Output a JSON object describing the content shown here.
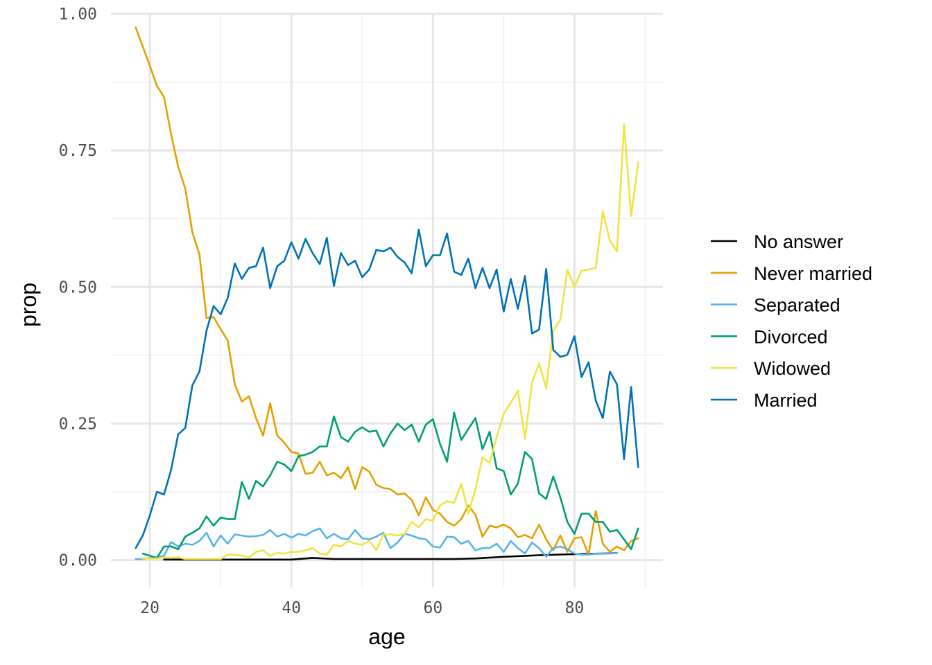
{
  "chart_data": {
    "type": "line",
    "title": "",
    "xlabel": "age",
    "ylabel": "prop",
    "xlim": [
      14.5,
      92.5
    ],
    "ylim": [
      -0.05,
      1.0
    ],
    "x_ticks": [
      20,
      40,
      60,
      80
    ],
    "x_tick_labels": [
      "20",
      "40",
      "60",
      "80"
    ],
    "y_ticks": [
      0,
      0.25,
      0.5,
      0.75,
      1.0
    ],
    "y_tick_labels": [
      "0.00",
      "0.25",
      "0.50",
      "0.75",
      "1.00"
    ],
    "grid": true,
    "legend_position": "right",
    "series": [
      {
        "name": "No answer",
        "color": "#000000",
        "x": [
          22,
          30,
          35,
          40,
          43,
          46,
          50,
          55,
          60,
          63,
          66,
          70,
          75,
          80,
          84,
          86
        ],
        "values": [
          0.001,
          0.001,
          0.001,
          0.001,
          0.004,
          0.002,
          0.002,
          0.002,
          0.002,
          0.002,
          0.003,
          0.006,
          0.009,
          0.011,
          0.012,
          0.013
        ]
      },
      {
        "name": "Never married",
        "color": "#E69F00",
        "x": [
          18,
          19,
          20,
          21,
          22,
          23,
          24,
          25,
          26,
          27,
          28,
          29,
          30,
          31,
          32,
          33,
          34,
          35,
          36,
          37,
          38,
          39,
          40,
          41,
          42,
          43,
          44,
          45,
          46,
          47,
          48,
          49,
          50,
          51,
          52,
          53,
          54,
          55,
          56,
          57,
          58,
          59,
          60,
          61,
          62,
          63,
          64,
          65,
          66,
          67,
          68,
          69,
          70,
          71,
          72,
          73,
          74,
          75,
          76,
          77,
          78,
          79,
          80,
          81,
          82,
          83,
          84,
          85,
          86,
          87,
          88,
          89
        ],
        "values": [
          0.975,
          0.94,
          0.905,
          0.868,
          0.848,
          0.78,
          0.72,
          0.68,
          0.6,
          0.56,
          0.443,
          0.445,
          0.423,
          0.402,
          0.322,
          0.29,
          0.3,
          0.26,
          0.228,
          0.287,
          0.228,
          0.215,
          0.198,
          0.195,
          0.158,
          0.16,
          0.18,
          0.155,
          0.16,
          0.15,
          0.17,
          0.13,
          0.17,
          0.162,
          0.138,
          0.132,
          0.13,
          0.12,
          0.122,
          0.11,
          0.082,
          0.115,
          0.092,
          0.085,
          0.07,
          0.063,
          0.075,
          0.1,
          0.083,
          0.043,
          0.063,
          0.06,
          0.065,
          0.058,
          0.042,
          0.046,
          0.04,
          0.065,
          0.038,
          0.018,
          0.045,
          0.015,
          0.04,
          0.042,
          0.01,
          0.09,
          0.03,
          0.015,
          0.025,
          0.018,
          0.035,
          0.04
        ]
      },
      {
        "name": "Separated",
        "color": "#56B4E9",
        "x": [
          18,
          19,
          20,
          21,
          22,
          23,
          24,
          25,
          26,
          27,
          28,
          29,
          30,
          31,
          32,
          33,
          34,
          35,
          36,
          37,
          38,
          39,
          40,
          41,
          42,
          43,
          44,
          45,
          46,
          47,
          48,
          49,
          50,
          51,
          52,
          53,
          54,
          55,
          56,
          57,
          58,
          59,
          60,
          61,
          62,
          63,
          64,
          65,
          66,
          67,
          68,
          69,
          70,
          71,
          72,
          73,
          74,
          75,
          76,
          77,
          78,
          79,
          80,
          81,
          82,
          83,
          84,
          85,
          86
        ],
        "values": [
          0.002,
          0.002,
          0.004,
          0.005,
          0.008,
          0.033,
          0.025,
          0.03,
          0.028,
          0.035,
          0.05,
          0.025,
          0.045,
          0.03,
          0.047,
          0.045,
          0.043,
          0.044,
          0.046,
          0.055,
          0.043,
          0.048,
          0.041,
          0.048,
          0.045,
          0.053,
          0.058,
          0.04,
          0.048,
          0.04,
          0.038,
          0.055,
          0.04,
          0.038,
          0.043,
          0.05,
          0.022,
          0.032,
          0.048,
          0.045,
          0.04,
          0.038,
          0.025,
          0.023,
          0.043,
          0.042,
          0.03,
          0.035,
          0.018,
          0.022,
          0.022,
          0.03,
          0.015,
          0.035,
          0.022,
          0.012,
          0.032,
          0.022,
          0.006,
          0.022,
          0.025,
          0.02,
          0.012,
          0.01,
          0.01,
          0.012,
          0.012,
          0.012,
          0.013
        ]
      },
      {
        "name": "Divorced",
        "color": "#009E73",
        "x": [
          19,
          20,
          21,
          22,
          23,
          24,
          25,
          26,
          27,
          28,
          29,
          30,
          31,
          32,
          33,
          34,
          35,
          36,
          37,
          38,
          39,
          40,
          41,
          42,
          43,
          44,
          45,
          46,
          47,
          48,
          49,
          50,
          51,
          52,
          53,
          54,
          55,
          56,
          57,
          58,
          59,
          60,
          61,
          62,
          63,
          64,
          65,
          66,
          67,
          68,
          69,
          70,
          71,
          72,
          73,
          74,
          75,
          76,
          77,
          78,
          79,
          80,
          81,
          82,
          83,
          84,
          85,
          86,
          87,
          88,
          89
        ],
        "values": [
          0.012,
          0.008,
          0.004,
          0.025,
          0.025,
          0.02,
          0.043,
          0.05,
          0.058,
          0.08,
          0.063,
          0.078,
          0.075,
          0.075,
          0.143,
          0.112,
          0.145,
          0.135,
          0.155,
          0.18,
          0.175,
          0.163,
          0.19,
          0.193,
          0.198,
          0.208,
          0.208,
          0.263,
          0.225,
          0.217,
          0.235,
          0.243,
          0.235,
          0.237,
          0.208,
          0.232,
          0.25,
          0.238,
          0.248,
          0.217,
          0.248,
          0.258,
          0.213,
          0.18,
          0.27,
          0.22,
          0.24,
          0.26,
          0.203,
          0.235,
          0.168,
          0.163,
          0.12,
          0.14,
          0.198,
          0.185,
          0.122,
          0.112,
          0.153,
          0.115,
          0.07,
          0.048,
          0.085,
          0.085,
          0.07,
          0.07,
          0.052,
          0.055,
          0.038,
          0.02,
          0.058
        ]
      },
      {
        "name": "Widowed",
        "color": "#F0E442",
        "x": [
          19,
          20,
          21,
          22,
          23,
          24,
          25,
          26,
          27,
          28,
          29,
          30,
          31,
          32,
          33,
          34,
          35,
          36,
          37,
          38,
          39,
          40,
          41,
          42,
          43,
          44,
          45,
          46,
          47,
          48,
          49,
          50,
          51,
          52,
          53,
          54,
          55,
          56,
          57,
          58,
          59,
          60,
          61,
          62,
          63,
          64,
          65,
          66,
          67,
          68,
          69,
          70,
          71,
          72,
          73,
          74,
          75,
          76,
          77,
          78,
          79,
          80,
          81,
          82,
          83,
          84,
          85,
          86,
          87,
          88,
          89
        ],
        "values": [
          0.003,
          0.003,
          0.003,
          0.005,
          0.004,
          0.005,
          0.002,
          0.002,
          0.002,
          0.002,
          0.002,
          0.002,
          0.01,
          0.01,
          0.008,
          0.005,
          0.015,
          0.018,
          0.008,
          0.013,
          0.012,
          0.015,
          0.015,
          0.018,
          0.022,
          0.012,
          0.01,
          0.028,
          0.025,
          0.035,
          0.03,
          0.028,
          0.035,
          0.018,
          0.047,
          0.047,
          0.045,
          0.048,
          0.07,
          0.06,
          0.075,
          0.072,
          0.1,
          0.108,
          0.105,
          0.14,
          0.085,
          0.13,
          0.188,
          0.178,
          0.225,
          0.268,
          0.288,
          0.31,
          0.222,
          0.325,
          0.36,
          0.315,
          0.42,
          0.44,
          0.532,
          0.5,
          0.53,
          0.532,
          0.535,
          0.638,
          0.585,
          0.565,
          0.798,
          0.63,
          0.728
        ]
      },
      {
        "name": "Married",
        "color": "#0072B2",
        "x": [
          18,
          19,
          20,
          21,
          22,
          23,
          24,
          25,
          26,
          27,
          28,
          29,
          30,
          31,
          32,
          33,
          34,
          35,
          36,
          37,
          38,
          39,
          40,
          41,
          42,
          43,
          44,
          45,
          46,
          47,
          48,
          49,
          50,
          51,
          52,
          53,
          54,
          55,
          56,
          57,
          58,
          59,
          60,
          61,
          62,
          63,
          64,
          65,
          66,
          67,
          68,
          69,
          70,
          71,
          72,
          73,
          74,
          75,
          76,
          77,
          78,
          79,
          80,
          81,
          82,
          83,
          84,
          85,
          86,
          87,
          88,
          89
        ],
        "values": [
          0.022,
          0.045,
          0.082,
          0.125,
          0.12,
          0.165,
          0.23,
          0.242,
          0.32,
          0.345,
          0.42,
          0.465,
          0.45,
          0.48,
          0.543,
          0.515,
          0.535,
          0.538,
          0.572,
          0.498,
          0.538,
          0.548,
          0.582,
          0.552,
          0.588,
          0.562,
          0.542,
          0.59,
          0.502,
          0.562,
          0.54,
          0.548,
          0.518,
          0.532,
          0.568,
          0.565,
          0.572,
          0.555,
          0.545,
          0.525,
          0.605,
          0.538,
          0.558,
          0.558,
          0.598,
          0.528,
          0.522,
          0.552,
          0.498,
          0.535,
          0.498,
          0.532,
          0.455,
          0.515,
          0.46,
          0.52,
          0.415,
          0.422,
          0.533,
          0.385,
          0.372,
          0.376,
          0.41,
          0.335,
          0.362,
          0.292,
          0.26,
          0.345,
          0.322,
          0.185,
          0.317,
          0.17
        ]
      }
    ]
  }
}
